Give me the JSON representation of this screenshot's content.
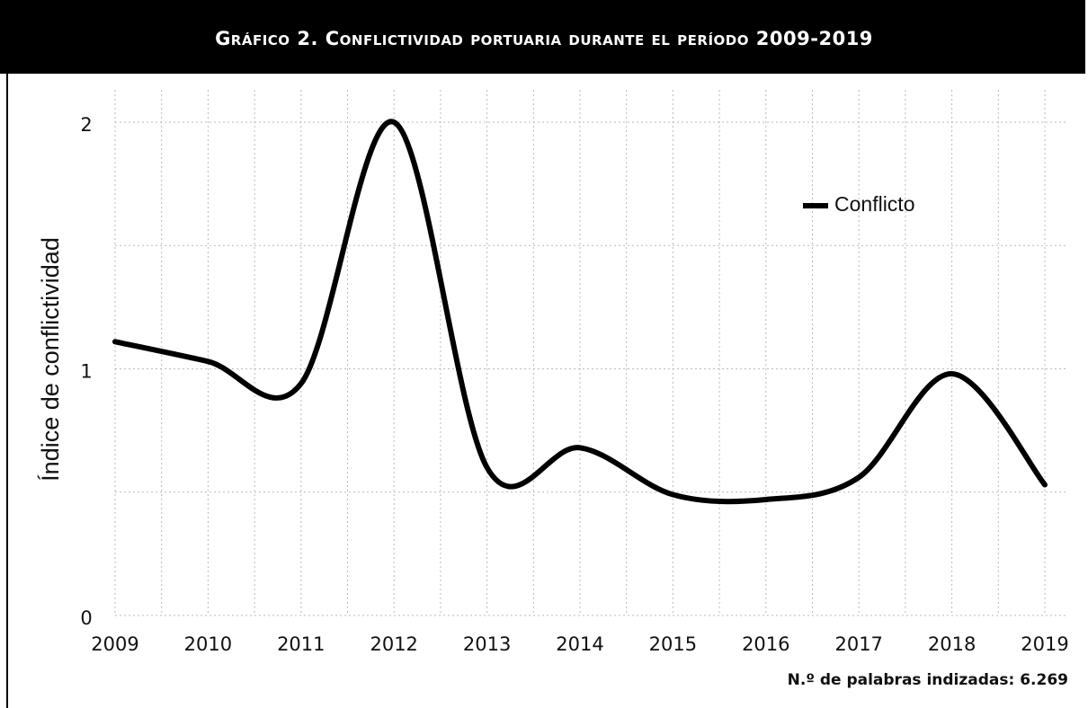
{
  "chart_data": {
    "type": "line",
    "title": "Gráfico 2. Conflictividad portuaria durante el período 2009-2019",
    "y_label": "Índice de conflictividad",
    "note": "N.º de palabras indizadas: 6.269",
    "x": [
      2009,
      2010,
      2011,
      2012,
      2013,
      2014,
      2015,
      2016,
      2017,
      2018,
      2019
    ],
    "series": [
      {
        "name": "Conflicto",
        "color": "#000000",
        "values": [
          1.11,
          1.03,
          0.94,
          2.0,
          0.6,
          0.68,
          0.49,
          0.47,
          0.56,
          0.98,
          0.53
        ]
      }
    ],
    "xlim": [
      2009,
      2019
    ],
    "xticks": [
      2009,
      2010,
      2011,
      2012,
      2013,
      2014,
      2015,
      2016,
      2017,
      2018,
      2019
    ],
    "ylim": [
      0,
      2
    ],
    "yticks": [
      0,
      1,
      2
    ],
    "grid": true,
    "legend": "upper right"
  }
}
